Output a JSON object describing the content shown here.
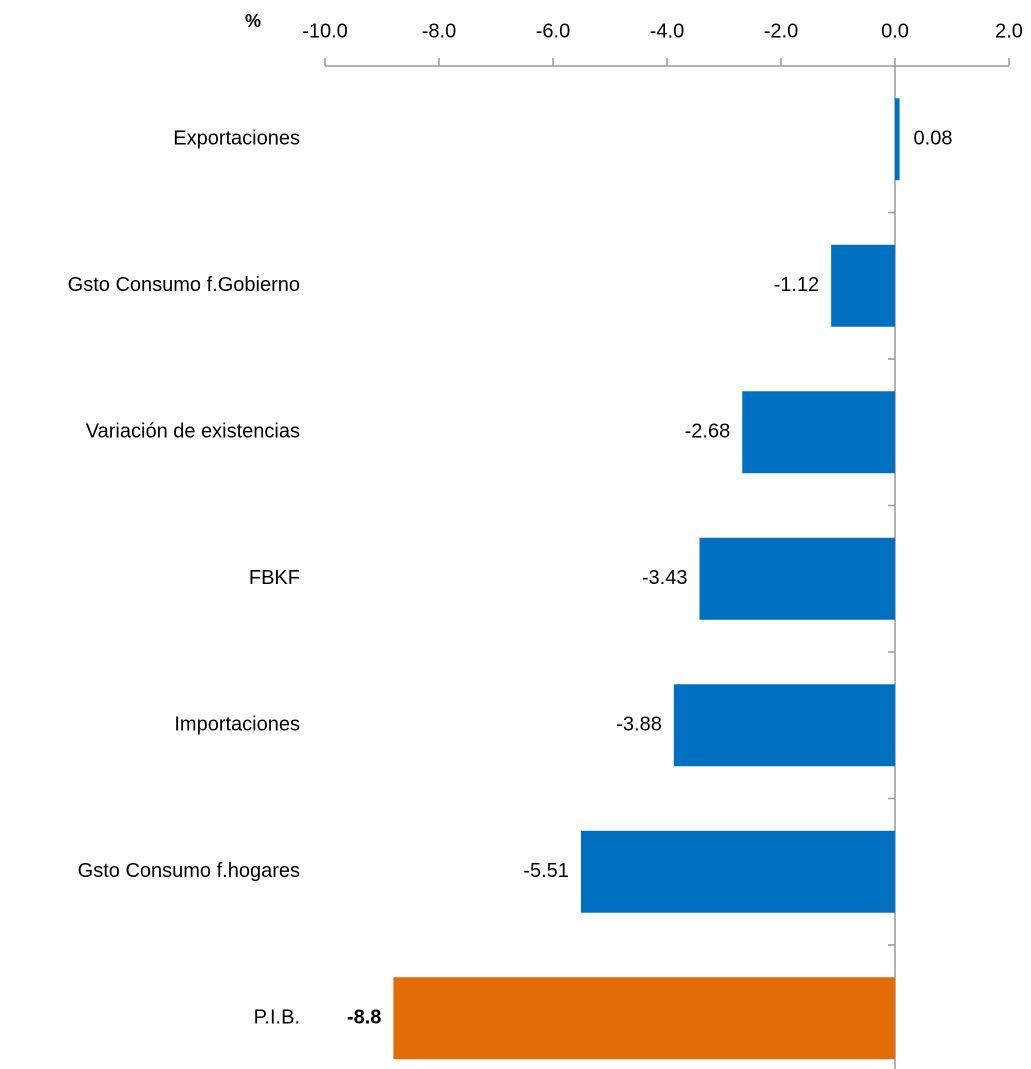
{
  "chart_data": {
    "type": "barh",
    "xlabel": "%",
    "categories": [
      "Exportaciones",
      "Gsto Consumo f.Gobierno",
      "Variación de existencias",
      "FBKF",
      "Importaciones",
      "Gsto Consumo f.hogares",
      "P.I.B."
    ],
    "values": [
      0.08,
      -1.12,
      -2.68,
      -3.43,
      -3.88,
      -5.51,
      -8.8
    ],
    "colors": [
      "#0070c0",
      "#0070c0",
      "#0070c0",
      "#0070c0",
      "#0070c0",
      "#0070c0",
      "#e36c09"
    ],
    "value_label_bold": [
      false,
      false,
      false,
      false,
      false,
      false,
      true
    ],
    "xlim": [
      -10,
      2
    ],
    "xticks": [
      {
        "value": -10,
        "label": "-10.0"
      },
      {
        "value": -8,
        "label": "-8.0"
      },
      {
        "value": -6,
        "label": "-6.0"
      },
      {
        "value": -4,
        "label": "-4.0"
      },
      {
        "value": -2,
        "label": "-2.0"
      },
      {
        "value": 0,
        "label": "0.0"
      },
      {
        "value": 2,
        "label": "2.0"
      }
    ],
    "xaxis_position": "top"
  }
}
